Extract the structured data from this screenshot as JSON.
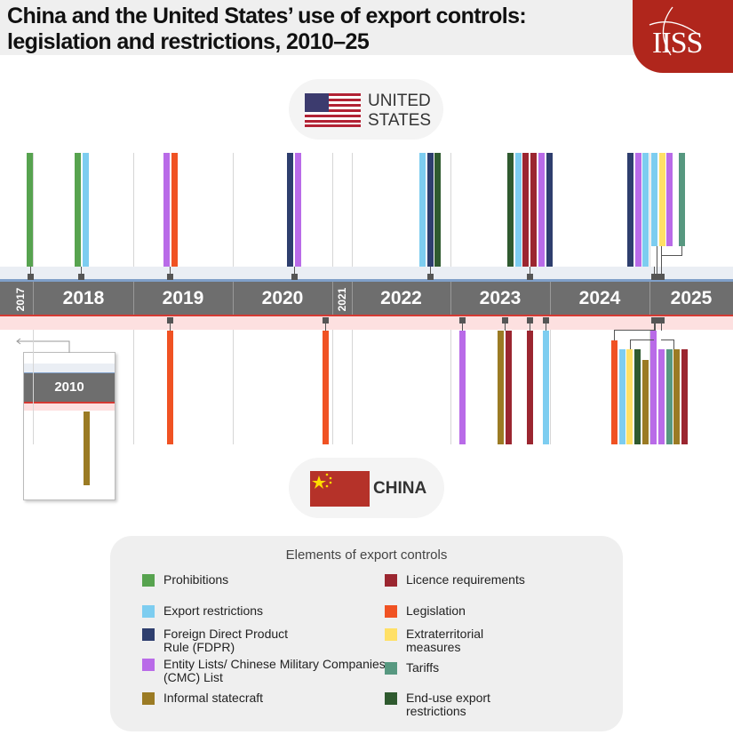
{
  "title": "China and the United States’ use of export controls: legislation and restrictions, 2010–25",
  "logo": "IISS",
  "us_label_1": "UNITED",
  "us_label_2": "STATES",
  "china_label": "CHINA",
  "years": [
    "2017",
    "2018",
    "2019",
    "2020",
    "2021",
    "2022",
    "2023",
    "2024",
    "2025"
  ],
  "inset_year": "2010",
  "colors": {
    "prohibitions": "#57a34f",
    "export_restrictions": "#7dcdf0",
    "fdpr": "#2e3e6e",
    "entity_lists": "#b96be8",
    "informal_statecraft": "#9b7b24",
    "licence_requirements": "#9b2630",
    "legislation": "#f05223",
    "extraterritorial": "#ffe066",
    "tariffs": "#579880",
    "end_use": "#2f5a2f"
  },
  "us_events": [
    {
      "year": "2017",
      "categories": [
        "prohibitions"
      ]
    },
    {
      "year": "2018",
      "categories": [
        "prohibitions",
        "export_restrictions"
      ]
    },
    {
      "year": "2019",
      "categories": [
        "entity_lists",
        "legislation"
      ]
    },
    {
      "year": "2020",
      "categories": [
        "fdpr",
        "entity_lists"
      ]
    },
    {
      "year": "2022",
      "categories": [
        "export_restrictions",
        "fdpr",
        "end_use"
      ]
    },
    {
      "year": "2023",
      "categories": [
        "end_use",
        "export_restrictions",
        "licence_requirements",
        "licence_requirements",
        "entity_lists",
        "fdpr"
      ]
    },
    {
      "year": "2024",
      "categories": [
        "fdpr",
        "entity_lists",
        "export_restrictions"
      ]
    },
    {
      "year": "2025",
      "categories": [
        "export_restrictions",
        "extraterritorial",
        "entity_lists"
      ]
    },
    {
      "year": "2025",
      "categories": [
        "tariffs"
      ]
    }
  ],
  "china_events": [
    {
      "year": "2010",
      "categories": [
        "informal_statecraft"
      ]
    },
    {
      "year": "2019",
      "categories": [
        "legislation"
      ]
    },
    {
      "year": "2020",
      "categories": [
        "legislation"
      ]
    },
    {
      "year": "2023",
      "categories": [
        "entity_lists"
      ]
    },
    {
      "year": "2023",
      "categories": [
        "informal_statecraft",
        "licence_requirements"
      ]
    },
    {
      "year": "2023",
      "categories": [
        "licence_requirements"
      ]
    },
    {
      "year": "2023",
      "categories": [
        "export_restrictions"
      ]
    },
    {
      "year": "2024",
      "categories": [
        "legislation",
        "export_restrictions",
        "extraterritorial",
        "end_use",
        "informal_statecraft"
      ]
    },
    {
      "year": "2025",
      "categories": [
        "entity_lists"
      ]
    },
    {
      "year": "2025",
      "categories": [
        "entity_lists",
        "tariffs",
        "informal_statecraft",
        "licence_requirements"
      ]
    }
  ],
  "legend": {
    "title": "Elements of export controls",
    "items": [
      {
        "key": "prohibitions",
        "label": "Prohibitions"
      },
      {
        "key": "licence_requirements",
        "label": "Licence requirements"
      },
      {
        "key": "export_restrictions",
        "label": "Export restrictions"
      },
      {
        "key": "legislation",
        "label": "Legislation"
      },
      {
        "key": "fdpr",
        "label": "Foreign Direct Product Rule (FDPR)"
      },
      {
        "key": "extraterritorial",
        "label": "Extraterritorial measures"
      },
      {
        "key": "entity_lists",
        "label": "Entity Lists/ Chinese Military Companies (CMC) List"
      },
      {
        "key": "tariffs",
        "label": "Tariffs"
      },
      {
        "key": "informal_statecraft",
        "label": "Informal statecraft"
      },
      {
        "key": "end_use",
        "label": "End-use export restrictions"
      }
    ]
  }
}
